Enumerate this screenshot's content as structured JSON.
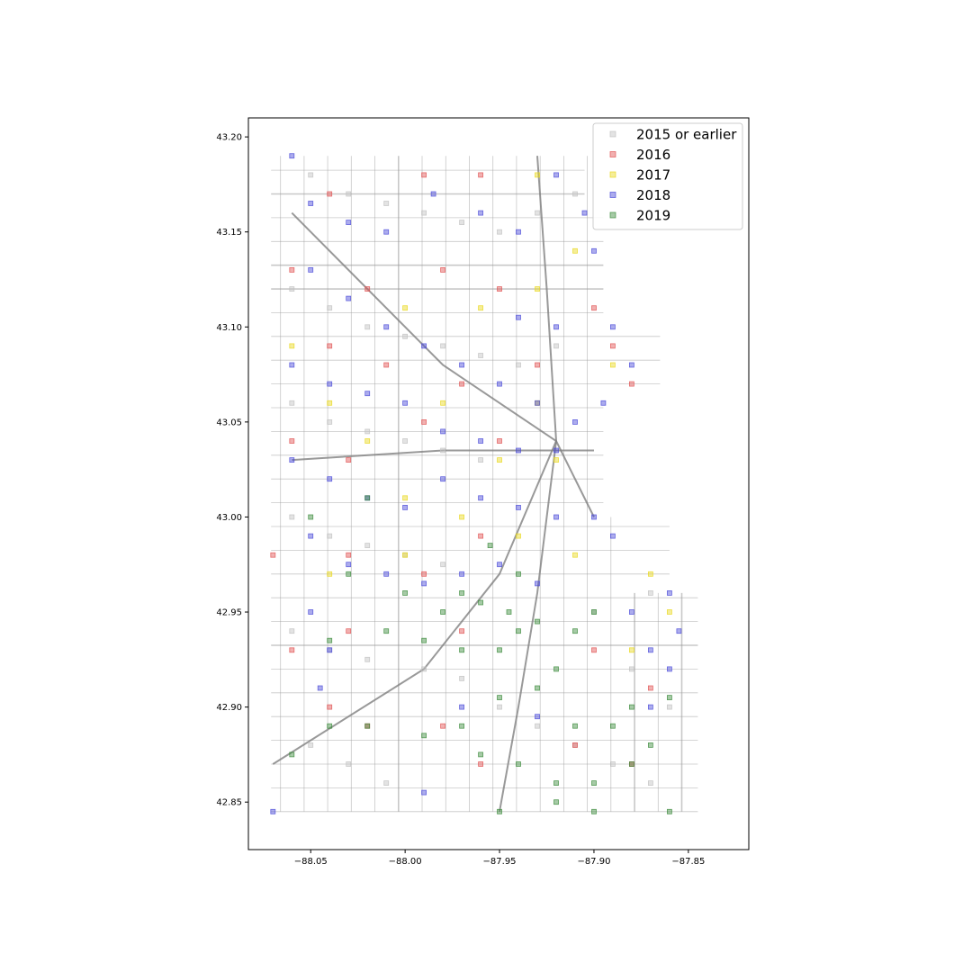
{
  "chart_data": {
    "type": "scatter",
    "title": "",
    "xlabel": "",
    "ylabel": "",
    "xlim": [
      -88.083,
      -87.818
    ],
    "ylim": [
      42.825,
      43.21
    ],
    "x_ticks": [
      -88.05,
      -88.0,
      -87.95,
      -87.9,
      -87.85
    ],
    "x_tick_labels": [
      "−88.05",
      "−88.00",
      "−87.95",
      "−87.90",
      "−87.85"
    ],
    "y_ticks": [
      42.85,
      42.9,
      42.95,
      43.0,
      43.05,
      43.1,
      43.15,
      43.2
    ],
    "y_tick_labels": [
      "42.85",
      "42.90",
      "42.95",
      "43.00",
      "43.05",
      "43.10",
      "43.15",
      "43.20"
    ],
    "grid": false,
    "legend_position": "upper right",
    "marker": "square",
    "series": [
      {
        "name": "2015 or earlier",
        "color": "#c0c0c0",
        "region": "citywide",
        "points": [
          [
            -88.05,
            43.18
          ],
          [
            -88.03,
            43.17
          ],
          [
            -88.01,
            43.165
          ],
          [
            -87.99,
            43.16
          ],
          [
            -87.97,
            43.155
          ],
          [
            -87.95,
            43.15
          ],
          [
            -87.93,
            43.16
          ],
          [
            -87.91,
            43.17
          ],
          [
            -88.06,
            43.12
          ],
          [
            -88.04,
            43.11
          ],
          [
            -88.02,
            43.1
          ],
          [
            -88.0,
            43.095
          ],
          [
            -87.98,
            43.09
          ],
          [
            -87.96,
            43.085
          ],
          [
            -87.94,
            43.08
          ],
          [
            -87.92,
            43.09
          ],
          [
            -88.06,
            43.06
          ],
          [
            -88.04,
            43.05
          ],
          [
            -88.02,
            43.045
          ],
          [
            -88.0,
            43.04
          ],
          [
            -87.98,
            43.035
          ],
          [
            -87.96,
            43.03
          ],
          [
            -88.06,
            43.0
          ],
          [
            -88.04,
            42.99
          ],
          [
            -88.02,
            42.985
          ],
          [
            -88.0,
            42.98
          ],
          [
            -87.98,
            42.975
          ],
          [
            -88.06,
            42.94
          ],
          [
            -88.04,
            42.93
          ],
          [
            -88.02,
            42.925
          ],
          [
            -87.99,
            42.92
          ],
          [
            -87.97,
            42.915
          ],
          [
            -87.95,
            42.9
          ],
          [
            -87.93,
            42.89
          ],
          [
            -87.91,
            42.88
          ],
          [
            -87.89,
            42.87
          ],
          [
            -87.87,
            42.86
          ],
          [
            -87.86,
            42.9
          ],
          [
            -87.88,
            42.92
          ],
          [
            -87.9,
            42.95
          ],
          [
            -87.87,
            42.96
          ],
          [
            -88.05,
            42.88
          ],
          [
            -88.03,
            42.87
          ],
          [
            -88.01,
            42.86
          ]
        ]
      },
      {
        "name": "2016",
        "color": "#e05050",
        "region": "scattered",
        "points": [
          [
            -88.04,
            43.17
          ],
          [
            -87.99,
            43.18
          ],
          [
            -87.96,
            43.18
          ],
          [
            -88.06,
            43.13
          ],
          [
            -88.02,
            43.12
          ],
          [
            -87.98,
            43.13
          ],
          [
            -87.95,
            43.12
          ],
          [
            -87.9,
            43.11
          ],
          [
            -88.04,
            43.09
          ],
          [
            -88.01,
            43.08
          ],
          [
            -87.97,
            43.07
          ],
          [
            -87.93,
            43.08
          ],
          [
            -87.89,
            43.09
          ],
          [
            -87.88,
            43.07
          ],
          [
            -88.06,
            43.04
          ],
          [
            -88.03,
            43.03
          ],
          [
            -87.99,
            43.05
          ],
          [
            -87.95,
            43.04
          ],
          [
            -88.07,
            42.98
          ],
          [
            -88.03,
            42.98
          ],
          [
            -87.99,
            42.97
          ],
          [
            -87.96,
            42.99
          ],
          [
            -88.06,
            42.93
          ],
          [
            -88.03,
            42.94
          ],
          [
            -87.97,
            42.94
          ],
          [
            -87.9,
            42.93
          ],
          [
            -88.04,
            42.9
          ],
          [
            -88.02,
            42.89
          ],
          [
            -87.98,
            42.89
          ],
          [
            -87.96,
            42.87
          ],
          [
            -87.91,
            42.88
          ],
          [
            -87.87,
            42.91
          ],
          [
            -87.88,
            42.87
          ]
        ]
      },
      {
        "name": "2017",
        "color": "#e8d81c",
        "region": "central and northeast",
        "points": [
          [
            -87.93,
            43.18
          ],
          [
            -87.91,
            43.14
          ],
          [
            -88.0,
            43.11
          ],
          [
            -87.96,
            43.11
          ],
          [
            -87.93,
            43.12
          ],
          [
            -87.89,
            43.08
          ],
          [
            -87.93,
            43.06
          ],
          [
            -88.04,
            43.06
          ],
          [
            -88.02,
            43.04
          ],
          [
            -87.98,
            43.06
          ],
          [
            -87.95,
            43.03
          ],
          [
            -87.92,
            43.03
          ],
          [
            -87.97,
            43.0
          ],
          [
            -88.0,
            43.01
          ],
          [
            -87.94,
            42.99
          ],
          [
            -87.91,
            42.98
          ],
          [
            -88.04,
            42.97
          ],
          [
            -88.0,
            42.98
          ],
          [
            -87.87,
            42.97
          ],
          [
            -87.86,
            42.95
          ],
          [
            -87.88,
            42.93
          ],
          [
            -88.06,
            43.09
          ]
        ]
      },
      {
        "name": "2018",
        "color": "#4848d8",
        "region": "main corridors north of 42.95",
        "points": [
          [
            -88.06,
            43.19
          ],
          [
            -88.05,
            43.165
          ],
          [
            -88.03,
            43.155
          ],
          [
            -88.01,
            43.15
          ],
          [
            -87.985,
            43.17
          ],
          [
            -87.96,
            43.16
          ],
          [
            -87.94,
            43.15
          ],
          [
            -87.92,
            43.18
          ],
          [
            -87.905,
            43.16
          ],
          [
            -87.9,
            43.14
          ],
          [
            -88.05,
            43.13
          ],
          [
            -88.03,
            43.115
          ],
          [
            -88.01,
            43.1
          ],
          [
            -87.99,
            43.09
          ],
          [
            -87.97,
            43.08
          ],
          [
            -87.95,
            43.07
          ],
          [
            -87.93,
            43.06
          ],
          [
            -87.91,
            43.05
          ],
          [
            -87.92,
            43.1
          ],
          [
            -87.94,
            43.105
          ],
          [
            -87.89,
            43.1
          ],
          [
            -87.88,
            43.08
          ],
          [
            -87.895,
            43.06
          ],
          [
            -88.06,
            43.08
          ],
          [
            -88.04,
            43.07
          ],
          [
            -88.02,
            43.065
          ],
          [
            -88.0,
            43.06
          ],
          [
            -87.98,
            43.045
          ],
          [
            -87.96,
            43.04
          ],
          [
            -87.94,
            43.035
          ],
          [
            -87.92,
            43.035
          ],
          [
            -88.06,
            43.03
          ],
          [
            -88.04,
            43.02
          ],
          [
            -88.02,
            43.01
          ],
          [
            -88.0,
            43.005
          ],
          [
            -87.98,
            43.02
          ],
          [
            -87.96,
            43.01
          ],
          [
            -87.94,
            43.005
          ],
          [
            -87.92,
            43.0
          ],
          [
            -87.9,
            43.0
          ],
          [
            -87.89,
            42.99
          ],
          [
            -88.05,
            42.99
          ],
          [
            -88.03,
            42.975
          ],
          [
            -88.01,
            42.97
          ],
          [
            -87.99,
            42.965
          ],
          [
            -87.97,
            42.97
          ],
          [
            -87.95,
            42.975
          ],
          [
            -87.93,
            42.965
          ],
          [
            -88.05,
            42.95
          ],
          [
            -88.04,
            42.93
          ],
          [
            -88.045,
            42.91
          ],
          [
            -87.97,
            42.9
          ],
          [
            -87.88,
            42.95
          ],
          [
            -87.87,
            42.93
          ],
          [
            -87.86,
            42.92
          ],
          [
            -87.855,
            42.94
          ],
          [
            -87.86,
            42.96
          ],
          [
            -87.87,
            42.9
          ],
          [
            -88.07,
            42.845
          ],
          [
            -87.99,
            42.855
          ],
          [
            -87.93,
            42.895
          ]
        ]
      },
      {
        "name": "2019",
        "color": "#3a8a3a",
        "region": "southwest and south",
        "points": [
          [
            -88.05,
            43.0
          ],
          [
            -88.02,
            43.01
          ],
          [
            -88.03,
            42.97
          ],
          [
            -88.0,
            42.96
          ],
          [
            -87.98,
            42.95
          ],
          [
            -87.96,
            42.955
          ],
          [
            -87.945,
            42.95
          ],
          [
            -87.93,
            42.945
          ],
          [
            -87.94,
            42.94
          ],
          [
            -87.95,
            42.93
          ],
          [
            -87.97,
            42.93
          ],
          [
            -87.99,
            42.935
          ],
          [
            -88.01,
            42.94
          ],
          [
            -88.04,
            42.935
          ],
          [
            -87.92,
            42.92
          ],
          [
            -87.91,
            42.94
          ],
          [
            -87.9,
            42.95
          ],
          [
            -87.93,
            42.91
          ],
          [
            -87.95,
            42.905
          ],
          [
            -87.97,
            42.89
          ],
          [
            -87.99,
            42.885
          ],
          [
            -88.02,
            42.89
          ],
          [
            -88.04,
            42.89
          ],
          [
            -88.06,
            42.875
          ],
          [
            -87.96,
            42.875
          ],
          [
            -87.94,
            42.87
          ],
          [
            -87.92,
            42.86
          ],
          [
            -87.9,
            42.86
          ],
          [
            -87.88,
            42.87
          ],
          [
            -87.87,
            42.88
          ],
          [
            -87.89,
            42.89
          ],
          [
            -87.91,
            42.89
          ],
          [
            -87.95,
            42.845
          ],
          [
            -87.92,
            42.85
          ],
          [
            -87.9,
            42.845
          ],
          [
            -87.86,
            42.845
          ],
          [
            -87.88,
            42.9
          ],
          [
            -87.86,
            42.905
          ],
          [
            -87.97,
            42.96
          ],
          [
            -87.94,
            42.97
          ],
          [
            -87.955,
            42.985
          ]
        ]
      }
    ]
  }
}
